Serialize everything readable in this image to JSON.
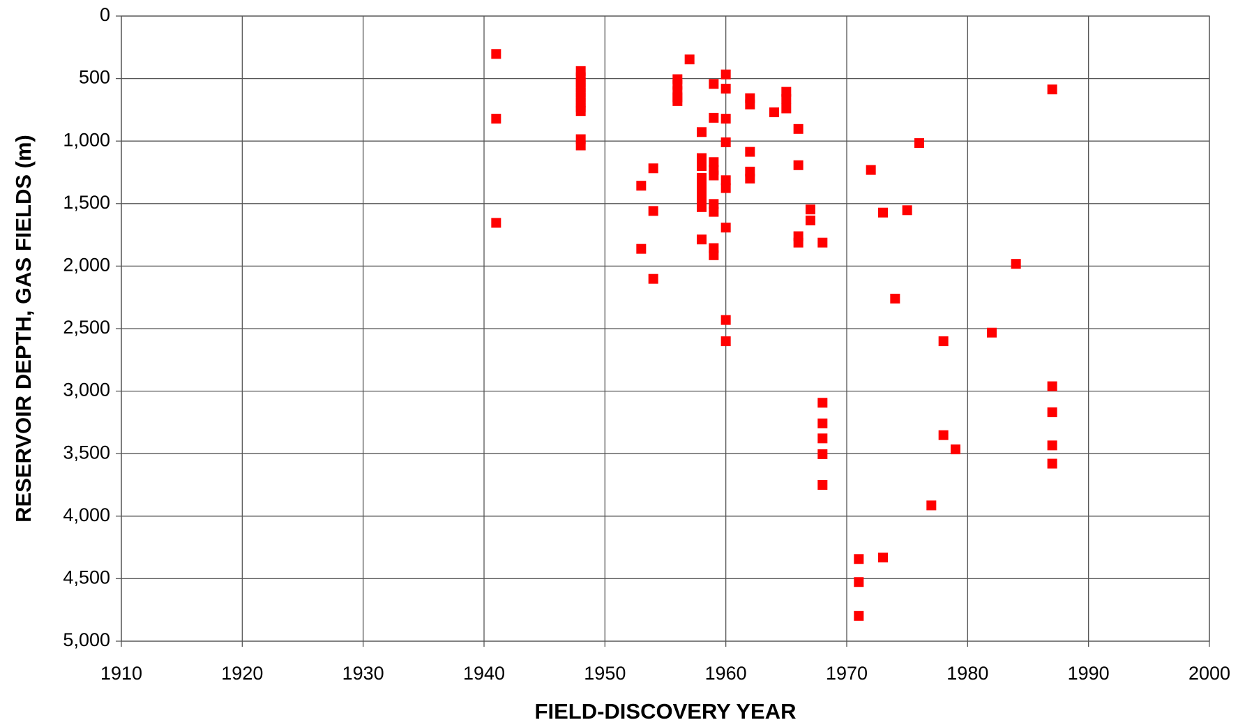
{
  "chart_data": {
    "type": "scatter",
    "x_label": "FIELD-DISCOVERY YEAR",
    "y_label": "RESERVOIR DEPTH, GAS FIELDS (m)",
    "xlim": [
      1910,
      2000
    ],
    "xticks": [
      1910,
      1920,
      1930,
      1940,
      1950,
      1960,
      1970,
      1980,
      1990,
      2000
    ],
    "ylim": [
      0,
      5000
    ],
    "y_inverted": true,
    "yticks": [
      0,
      500,
      {
        "value": 1000,
        "label": "1,000"
      },
      {
        "value": 1500,
        "label": "1,500"
      },
      {
        "value": 2000,
        "label": "2,000"
      },
      {
        "value": 2500,
        "label": "2,500"
      },
      {
        "value": 3000,
        "label": "3,000"
      },
      {
        "value": 3500,
        "label": "3,500"
      },
      {
        "value": 4000,
        "label": "4,000"
      },
      {
        "value": 4500,
        "label": "4,500"
      },
      {
        "value": 5000,
        "label": "5,000"
      }
    ],
    "grid": true,
    "color": "#ff0000",
    "series": [
      {
        "color": "#ff0000",
        "x": [
          1941,
          1941,
          1941,
          1948,
          1948,
          1948,
          1948,
          1948,
          1948,
          1948,
          1948,
          1948,
          1948,
          1948,
          1953,
          1953,
          1954,
          1954,
          1954,
          1956,
          1956,
          1956,
          1956,
          1956,
          1957,
          1958,
          1958,
          1958,
          1958,
          1958,
          1958,
          1958,
          1958,
          1958,
          1959,
          1959,
          1959,
          1959,
          1959,
          1959,
          1959,
          1959,
          1959,
          1960,
          1960,
          1960,
          1960,
          1960,
          1960,
          1960,
          1960,
          1960,
          1962,
          1962,
          1962,
          1962,
          1962,
          1964,
          1965,
          1965,
          1965,
          1966,
          1966,
          1966,
          1966,
          1967,
          1967,
          1968,
          1968,
          1968,
          1968,
          1968,
          1968,
          1971,
          1971,
          1971,
          1972,
          1973,
          1973,
          1974,
          1975,
          1976,
          1977,
          1978,
          1978,
          1979,
          1982,
          1984,
          1987,
          1987,
          1987,
          1987,
          1987
        ],
        "values": [
          303,
          821,
          1654,
          440,
          490,
          530,
          570,
          610,
          650,
          690,
          730,
          760,
          985,
          1035,
          1357,
          1862,
          1218,
          1559,
          2102,
          505,
          550,
          600,
          650,
          680,
          347,
          928,
          1136,
          1200,
          1294,
          1357,
          1420,
          1483,
          1528,
          1787,
          543,
          814,
          1168,
          1231,
          1275,
          1503,
          1566,
          1856,
          1913,
          467,
          581,
          821,
          1010,
          1313,
          1376,
          1692,
          2431,
          2601,
          657,
          707,
          1086,
          1244,
          1300,
          770,
          606,
          663,
          739,
          903,
          1193,
          1761,
          1812,
          1547,
          1635,
          1812,
          3093,
          3258,
          3378,
          3504,
          3750,
          4343,
          4527,
          4798,
          1231,
          1572,
          4331,
          2260,
          1553,
          1016,
          3914,
          2601,
          3352,
          3466,
          2532,
          1982,
          587,
          2961,
          3169,
          3434,
          3580
        ]
      }
    ]
  }
}
